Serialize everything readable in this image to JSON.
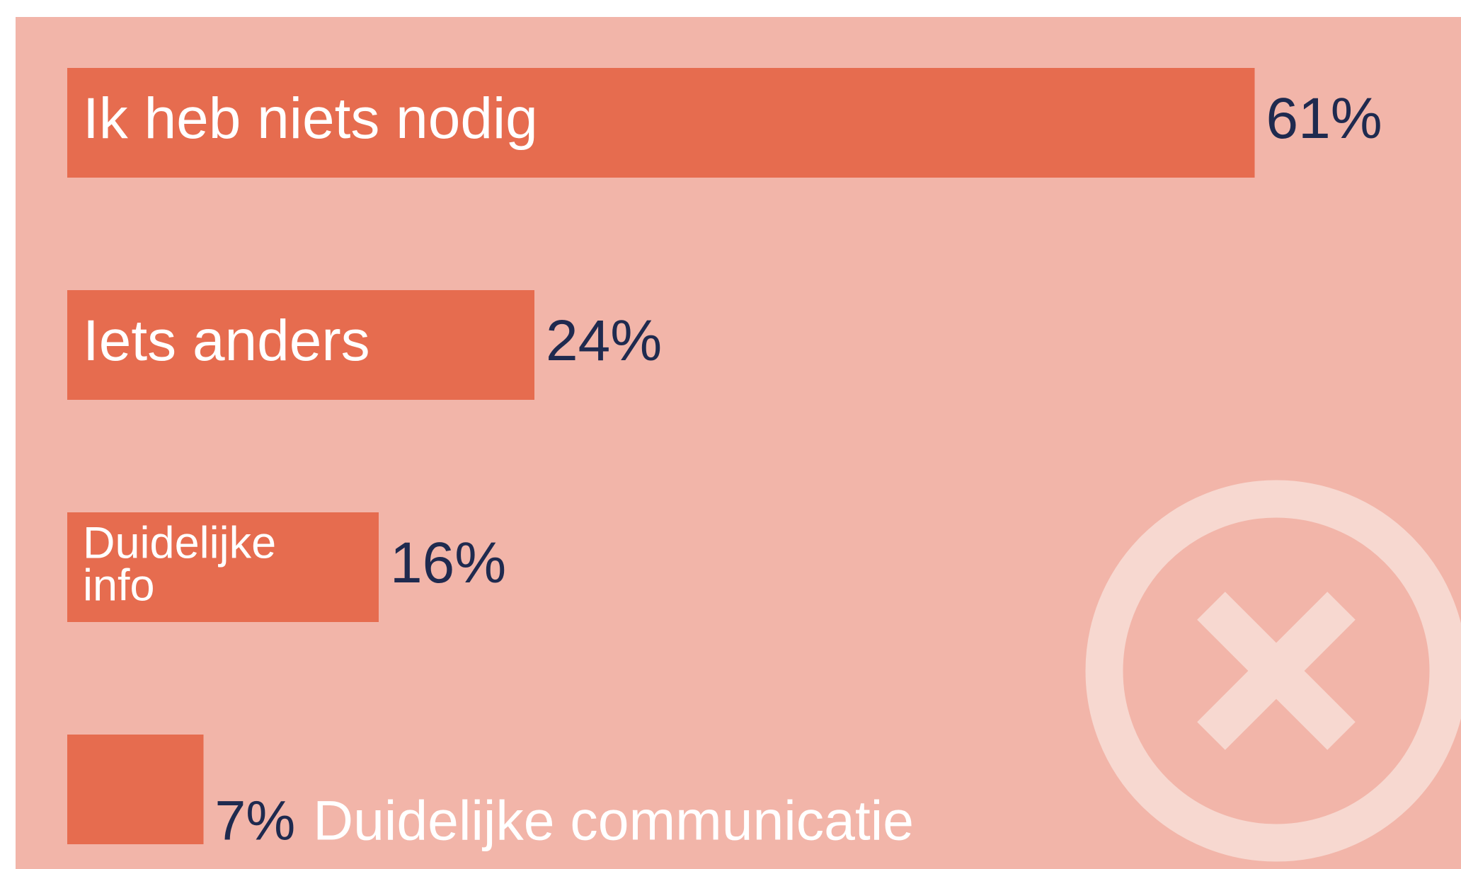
{
  "chart_data": {
    "type": "bar",
    "orientation": "horizontal",
    "categories": [
      "Ik heb niets nodig",
      "Iets anders",
      "Duidelijke info",
      "Duidelijke communicatie"
    ],
    "values": [
      61,
      24,
      16,
      7
    ],
    "value_labels": [
      "61%",
      "24%",
      "16%",
      "7%"
    ],
    "color": "#e66c4f"
  }
}
